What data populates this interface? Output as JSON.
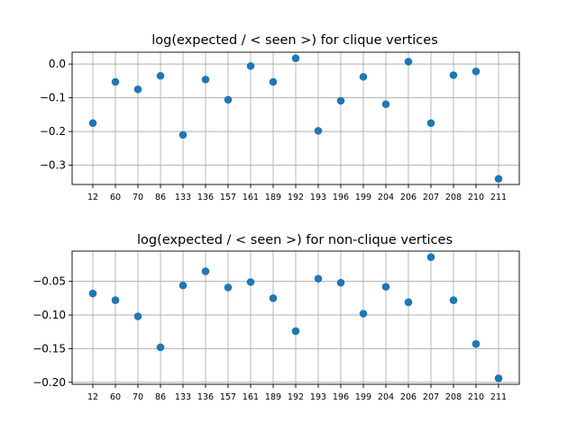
{
  "chart_data": [
    {
      "type": "scatter",
      "title": "log(expected / < seen >) for clique vertices",
      "xlabel": "",
      "ylabel": "",
      "categories": [
        "12",
        "60",
        "70",
        "86",
        "133",
        "136",
        "157",
        "161",
        "189",
        "192",
        "193",
        "196",
        "199",
        "204",
        "206",
        "207",
        "208",
        "210",
        "211"
      ],
      "values": [
        -0.175,
        -0.053,
        -0.075,
        -0.035,
        -0.21,
        -0.046,
        -0.106,
        -0.006,
        -0.053,
        0.017,
        -0.198,
        -0.109,
        -0.038,
        -0.119,
        0.007,
        -0.175,
        -0.033,
        -0.022,
        -0.34
      ],
      "yticks": [
        0.0,
        -0.1,
        -0.2,
        -0.3
      ],
      "ytick_labels": [
        "0.0",
        "−0.1",
        "−0.2",
        "−0.3"
      ],
      "ylim": [
        -0.357,
        0.035
      ],
      "grid": true,
      "marker_color": "#1f77b4"
    },
    {
      "type": "scatter",
      "title": "log(expected / < seen >) for non-clique vertices",
      "xlabel": "",
      "ylabel": "",
      "categories": [
        "12",
        "60",
        "70",
        "86",
        "133",
        "136",
        "157",
        "161",
        "189",
        "192",
        "193",
        "196",
        "199",
        "204",
        "206",
        "207",
        "208",
        "210",
        "211"
      ],
      "values": [
        -0.068,
        -0.078,
        -0.102,
        -0.148,
        -0.056,
        -0.035,
        -0.059,
        -0.051,
        -0.075,
        -0.124,
        -0.046,
        -0.052,
        -0.098,
        -0.058,
        -0.081,
        -0.014,
        -0.078,
        -0.143,
        -0.194
      ],
      "yticks": [
        -0.05,
        -0.1,
        -0.15,
        -0.2
      ],
      "ytick_labels": [
        "−0.05",
        "−0.10",
        "−0.15",
        "−0.20"
      ],
      "ylim": [
        -0.203,
        -0.005
      ],
      "grid": true,
      "marker_color": "#1f77b4"
    }
  ]
}
